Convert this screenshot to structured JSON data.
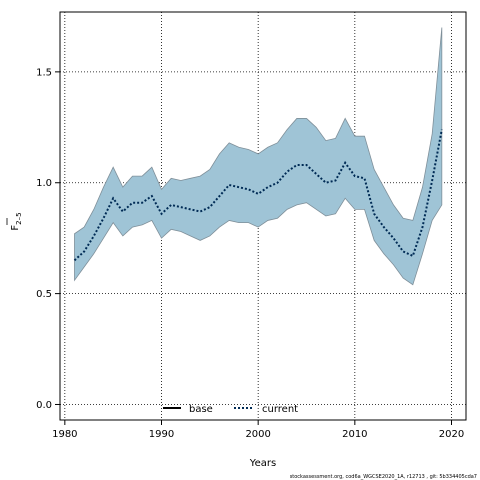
{
  "chart_data": {
    "type": "area",
    "xlabel": "Years",
    "ylabel_main": "F",
    "ylabel_sub": "2–5",
    "x_ticks": [
      1980,
      1990,
      2000,
      2010,
      2020
    ],
    "y_ticks": [
      0.0,
      0.5,
      1.0,
      1.5
    ],
    "x_tick_labels": [
      "1980",
      "1990",
      "2000",
      "2010",
      "2020"
    ],
    "y_tick_labels": [
      "0.0",
      "0.5",
      "1.0",
      "1.5"
    ],
    "xlim": [
      1979.5,
      2021.5
    ],
    "ylim": [
      -0.07,
      1.77
    ],
    "grid": true,
    "legend_position": "bottom-center",
    "colors": {
      "band_fill": "#9fc4d6",
      "band_stroke": "#7f8f99",
      "current_line": "#002b55",
      "base_line": "#000000",
      "grid": "#000000"
    },
    "x": [
      1981,
      1982,
      1983,
      1984,
      1985,
      1986,
      1987,
      1988,
      1989,
      1990,
      1991,
      1992,
      1993,
      1994,
      1995,
      1996,
      1997,
      1998,
      1999,
      2000,
      2001,
      2002,
      2003,
      2004,
      2005,
      2006,
      2007,
      2008,
      2009,
      2010,
      2011,
      2012,
      2013,
      2014,
      2015,
      2016,
      2017,
      2018,
      2019
    ],
    "series": [
      {
        "name": "current",
        "values": [
          0.65,
          0.69,
          0.76,
          0.84,
          0.93,
          0.87,
          0.91,
          0.91,
          0.94,
          0.86,
          0.9,
          0.89,
          0.88,
          0.87,
          0.89,
          0.94,
          0.99,
          0.98,
          0.97,
          0.95,
          0.98,
          1.0,
          1.05,
          1.08,
          1.08,
          1.04,
          1.0,
          1.01,
          1.09,
          1.03,
          1.02,
          0.86,
          0.8,
          0.75,
          0.69,
          0.67,
          0.8,
          1.01,
          1.24
        ]
      }
    ],
    "band": {
      "upper": [
        0.77,
        0.8,
        0.88,
        0.98,
        1.07,
        0.98,
        1.03,
        1.03,
        1.07,
        0.97,
        1.02,
        1.01,
        1.02,
        1.03,
        1.06,
        1.13,
        1.18,
        1.16,
        1.15,
        1.13,
        1.16,
        1.18,
        1.24,
        1.29,
        1.29,
        1.25,
        1.19,
        1.2,
        1.29,
        1.21,
        1.21,
        1.06,
        0.98,
        0.9,
        0.84,
        0.83,
        0.98,
        1.22,
        1.7
      ],
      "lower": [
        0.56,
        0.62,
        0.68,
        0.75,
        0.82,
        0.76,
        0.8,
        0.81,
        0.83,
        0.75,
        0.79,
        0.78,
        0.76,
        0.74,
        0.76,
        0.8,
        0.83,
        0.82,
        0.82,
        0.8,
        0.83,
        0.84,
        0.88,
        0.9,
        0.91,
        0.88,
        0.85,
        0.86,
        0.93,
        0.88,
        0.88,
        0.74,
        0.68,
        0.63,
        0.57,
        0.54,
        0.68,
        0.83,
        0.9
      ]
    },
    "legend": [
      {
        "label": "base",
        "style": "solid"
      },
      {
        "label": "current",
        "style": "dotted"
      }
    ]
  },
  "footer": "stockassessment.org, cod6a_WGCSE2020_1A, r12713 , git: 5b334405cda7"
}
